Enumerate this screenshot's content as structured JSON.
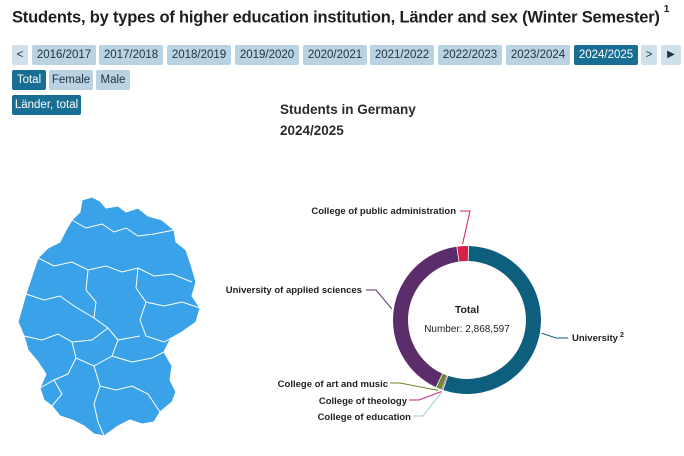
{
  "title": "Students, by types of higher education institution, Länder and sex (Winter Semester)",
  "title_footnote": "1",
  "semester_nav": {
    "prev_label": "<",
    "next_label": ">",
    "play_label": "▶",
    "semesters": [
      "2016/2017",
      "2017/2018",
      "2018/2019",
      "2019/2020",
      "2020/2021",
      "2021/2022",
      "2022/2023",
      "2023/2024",
      "2024/2025"
    ],
    "selected": "2024/2025"
  },
  "sex_filter": {
    "options": [
      "Total",
      "Female",
      "Male"
    ],
    "selected": "Total"
  },
  "region_button": "Länder, total",
  "chart_heading": {
    "line1": "Students in Germany",
    "line2": "2024/2025"
  },
  "map": {
    "fill_color": "#3aa2e8",
    "border_color": "#ffffff",
    "label": "germany-map"
  },
  "chart_data": {
    "type": "pie",
    "center_title": "Total",
    "center_value": "Number: 2,868,597",
    "slices": [
      {
        "label": "University",
        "footnote": "2",
        "color": "#0e5f7e",
        "share": 0.5495
      },
      {
        "label": "College of education",
        "footnote": "",
        "color": "#9ccad8",
        "share": 0.0016
      },
      {
        "label": "College of theology",
        "footnote": "",
        "color": "#c9207a",
        "share": 0.001
      },
      {
        "label": "College of art and music",
        "footnote": "",
        "color": "#6b8a30",
        "share": 0.013
      },
      {
        "label": "University of applied sciences",
        "footnote": "",
        "color": "#5b2d6b",
        "share": 0.4099
      },
      {
        "label": "College of public administration",
        "footnote": "",
        "color": "#d4204a",
        "share": 0.025
      }
    ]
  }
}
